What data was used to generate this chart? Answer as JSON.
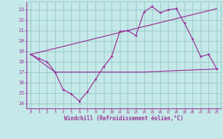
{
  "xlabel": "Windchill (Refroidissement éolien,°C)",
  "bg_color": "#c5e8e8",
  "grid_color": "#99cccc",
  "line_color": "#993399",
  "xlim": [
    -0.5,
    23.5
  ],
  "ylim": [
    13.5,
    23.8
  ],
  "yticks": [
    14,
    15,
    16,
    17,
    18,
    19,
    20,
    21,
    22,
    23
  ],
  "xticks": [
    0,
    1,
    2,
    3,
    4,
    5,
    6,
    7,
    8,
    9,
    10,
    11,
    12,
    13,
    14,
    15,
    16,
    17,
    18,
    19,
    20,
    21,
    22,
    23
  ],
  "line1_x": [
    0,
    1,
    2,
    3,
    4,
    5,
    6,
    7,
    8,
    9,
    10,
    11,
    12,
    13,
    14,
    15,
    16,
    17,
    18,
    19,
    20,
    21,
    22,
    23
  ],
  "line1_y": [
    18.7,
    18.3,
    18.0,
    17.0,
    15.3,
    14.9,
    14.2,
    15.1,
    16.3,
    17.5,
    18.5,
    20.9,
    21.0,
    20.5,
    22.8,
    23.3,
    22.7,
    23.0,
    23.1,
    21.7,
    20.2,
    18.5,
    18.7,
    17.3
  ],
  "line2_x": [
    0,
    3,
    9,
    14,
    23
  ],
  "line2_y": [
    18.7,
    17.0,
    17.0,
    17.0,
    17.3
  ],
  "line3_x": [
    0,
    23
  ],
  "line3_y": [
    18.7,
    23.1
  ]
}
